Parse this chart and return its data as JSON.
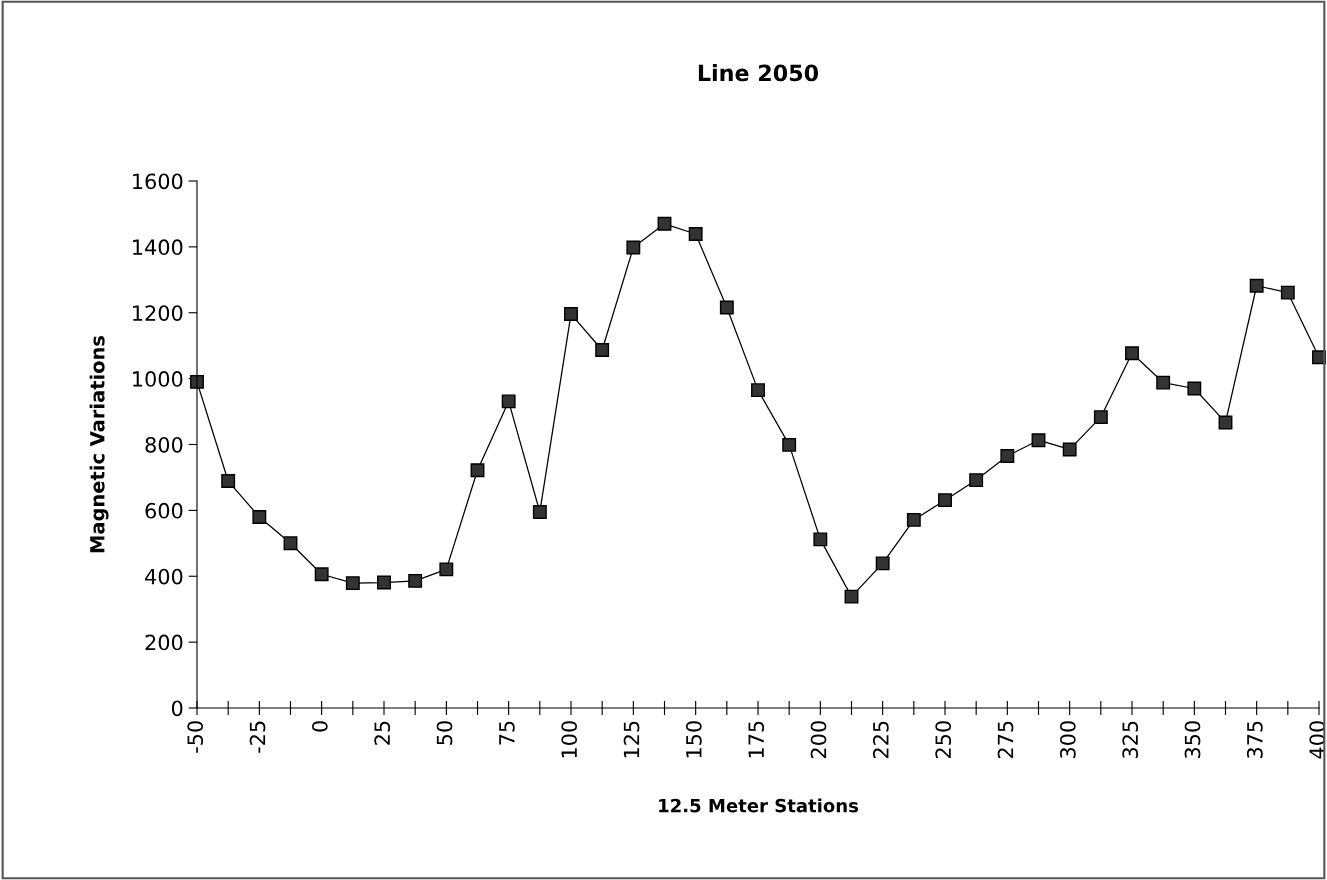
{
  "chart_data": {
    "type": "line",
    "title": "Line 2050",
    "xlabel": "12.5 Meter Stations",
    "ylabel": "Magnetic Variations",
    "x": [
      -50,
      -37.5,
      -25,
      -12.5,
      0,
      12.5,
      25,
      37.5,
      50,
      62.5,
      75,
      87.5,
      100,
      112.5,
      125,
      137.5,
      150,
      162.5,
      175,
      187.5,
      200,
      212.5,
      225,
      237.5,
      250,
      262.5,
      275,
      287.5,
      300,
      312.5,
      325,
      337.5,
      350,
      362.5,
      375,
      387.5,
      400
    ],
    "series": [
      {
        "color": "#000000",
        "values": [
          990,
          689,
          580,
          500,
          406,
          379,
          381,
          386,
          421,
          722,
          931,
          595,
          1196,
          1087,
          1398,
          1470,
          1439,
          1216,
          965,
          799,
          512,
          338,
          439,
          571,
          631,
          692,
          765,
          813,
          785,
          883,
          1077,
          988,
          970,
          867,
          1282,
          1261,
          1065
        ]
      }
    ],
    "xlim": [
      -50,
      400
    ],
    "xticks": [
      -50,
      {
        "value": -37.5,
        "label": null
      },
      -25,
      {
        "value": -12.5,
        "label": null
      },
      0,
      {
        "value": 12.5,
        "label": null
      },
      25,
      {
        "value": 37.5,
        "label": null
      },
      50,
      {
        "value": 62.5,
        "label": null
      },
      75,
      {
        "value": 87.5,
        "label": null
      },
      100,
      {
        "value": 112.5,
        "label": null
      },
      125,
      {
        "value": 137.5,
        "label": null
      },
      150,
      {
        "value": 162.5,
        "label": null
      },
      175,
      {
        "value": 187.5,
        "label": null
      },
      200,
      {
        "value": 212.5,
        "label": null
      },
      225,
      {
        "value": 237.5,
        "label": null
      },
      250,
      {
        "value": 262.5,
        "label": null
      },
      275,
      {
        "value": 287.5,
        "label": null
      },
      300,
      {
        "value": 312.5,
        "label": null
      },
      325,
      {
        "value": 337.5,
        "label": null
      },
      350,
      {
        "value": 362.5,
        "label": null
      },
      375,
      {
        "value": 387.5,
        "label": null
      },
      400
    ],
    "ylim": [
      0,
      1600
    ],
    "yticks": [
      0,
      200,
      400,
      600,
      800,
      1000,
      1200,
      1400,
      1600
    ],
    "marker": "square",
    "line_style": "solid",
    "grid": false,
    "legend": false
  }
}
